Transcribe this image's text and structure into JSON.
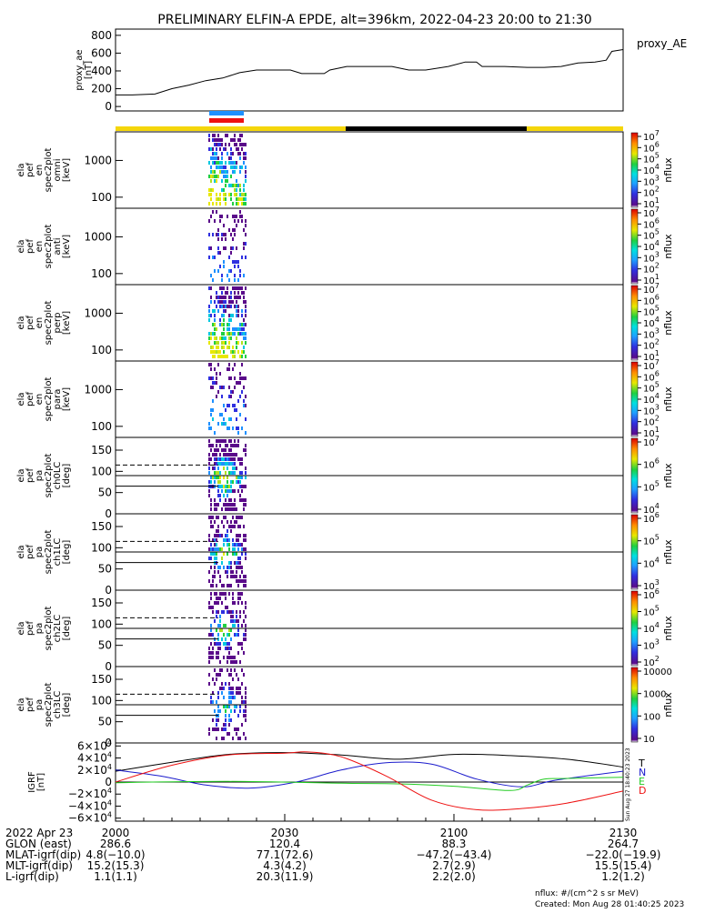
{
  "title": "PRELIMINARY ELFIN-A EPDE, alt=396km, 2022-04-23 20:00 to 21:30",
  "colors": {
    "bar_day": "#f5d60a",
    "bar_night": "#000000",
    "ind_blue": "#1e90ff",
    "ind_red": "#ee1111",
    "N": "#1a1acc",
    "T": "#000000",
    "E": "#22cc22",
    "D": "#ee1111"
  },
  "chart_data": [
    {
      "type": "line",
      "name": "proxy_ae",
      "ylabel": "proxy_ae [nT]",
      "legend": "proxy_AE",
      "yticks": [
        "800",
        "600",
        "400",
        "200",
        "0"
      ],
      "ylim": [
        -50,
        870
      ],
      "xlim_min": [
        0,
        90
      ],
      "x_min": [
        0,
        3,
        7,
        10,
        13,
        16,
        19,
        22,
        25,
        28,
        31,
        33,
        35,
        37,
        38,
        41,
        44,
        46,
        49,
        52,
        54,
        55,
        59,
        62,
        64,
        65,
        69,
        73,
        76,
        79,
        82,
        85,
        87,
        88,
        90
      ],
      "values": [
        130,
        130,
        140,
        200,
        240,
        290,
        320,
        380,
        410,
        410,
        410,
        370,
        370,
        370,
        410,
        450,
        450,
        450,
        450,
        410,
        410,
        410,
        450,
        500,
        500,
        450,
        450,
        440,
        440,
        450,
        490,
        500,
        520,
        620,
        640
      ]
    },
    {
      "type": "heatmap",
      "name": "ela_pef_en_spec2plot_omni",
      "ylabel": "ela pef en spec2plot omni [keV]",
      "yticks": [
        "1000",
        "100"
      ],
      "yscale": "log",
      "colorbar": {
        "label": "nflux",
        "ticks": [
          "10^7",
          "10^6",
          "10^5",
          "10^4",
          "10^3",
          "10^2",
          "10^1"
        ]
      }
    },
    {
      "type": "heatmap",
      "name": "ela_pef_en_spec2plot_anti",
      "ylabel": "ela pef en spec2plot anti [keV]",
      "yticks": [
        "1000",
        "100"
      ],
      "yscale": "log",
      "colorbar": {
        "label": "nflux",
        "ticks": [
          "10^7",
          "10^6",
          "10^5",
          "10^4",
          "10^3",
          "10^2",
          "10^1"
        ]
      }
    },
    {
      "type": "heatmap",
      "name": "ela_pef_en_spec2plot_perp",
      "ylabel": "ela pef en spec2plot perp [keV]",
      "yticks": [
        "1000",
        "100"
      ],
      "yscale": "log",
      "colorbar": {
        "label": "nflux",
        "ticks": [
          "10^7",
          "10^6",
          "10^5",
          "10^4",
          "10^3",
          "10^2",
          "10^1"
        ]
      }
    },
    {
      "type": "heatmap",
      "name": "ela_pef_en_spec2plot_para",
      "ylabel": "ela pef en spec2plot para [keV]",
      "yticks": [
        "1000",
        "100"
      ],
      "yscale": "log",
      "colorbar": {
        "label": "nflux",
        "ticks": [
          "10^7",
          "10^6",
          "10^5",
          "10^4",
          "10^3",
          "10^2",
          "10^1"
        ]
      }
    },
    {
      "type": "heatmap",
      "name": "ela_pef_pa_spec2plot_ch0LC",
      "ylabel": "ela pef pa spec2plot ch0LC [deg]",
      "yticks": [
        "150",
        "100",
        "50",
        "0"
      ],
      "ylim": [
        0,
        180
      ],
      "colorbar": {
        "label": "nflux",
        "ticks": [
          "10^7",
          "10^6",
          "10^5",
          "10^4"
        ]
      }
    },
    {
      "type": "heatmap",
      "name": "ela_pef_pa_spec2plot_ch1LC",
      "ylabel": "ela pef pa spec2plot ch1LC [deg]",
      "yticks": [
        "150",
        "100",
        "50",
        "0"
      ],
      "ylim": [
        0,
        180
      ],
      "colorbar": {
        "label": "nflux",
        "ticks": [
          "10^6",
          "10^5",
          "10^4",
          "10^3"
        ]
      }
    },
    {
      "type": "heatmap",
      "name": "ela_pef_pa_spec2plot_ch2LC",
      "ylabel": "ela pef pa spec2plot ch2LC [deg]",
      "yticks": [
        "150",
        "100",
        "50",
        "0"
      ],
      "ylim": [
        0,
        180
      ],
      "colorbar": {
        "label": "nflux",
        "ticks": [
          "10^6",
          "10^5",
          "10^4",
          "10^3",
          "10^2"
        ]
      }
    },
    {
      "type": "heatmap",
      "name": "ela_pef_pa_spec2plot_ch3LC",
      "ylabel": "ela pef pa spec2plot ch3LC [deg]",
      "yticks": [
        "150",
        "100",
        "50",
        "0"
      ],
      "ylim": [
        0,
        180
      ],
      "colorbar": {
        "label": "nflux",
        "ticks": [
          "10000",
          "1000",
          "100",
          "10"
        ]
      }
    },
    {
      "type": "line",
      "name": "IGRF",
      "ylabel": "IGRF [nT]",
      "yticks": [
        "6×10^4",
        "4×10^4",
        "2×10^4",
        "0",
        "−2×10^4",
        "−4×10^4",
        "−6×10^4"
      ],
      "ylim": [
        -65000,
        65000
      ],
      "side_text": "Sun Aug 27 18:40:23 2023",
      "series": [
        {
          "name": "T",
          "color": "#000000",
          "x_min": [
            0,
            10,
            20,
            30,
            40,
            50,
            60,
            70,
            80,
            90
          ],
          "values": [
            18000,
            33000,
            46000,
            49000,
            45000,
            38000,
            46000,
            44000,
            38000,
            25000
          ]
        },
        {
          "name": "N",
          "color": "#1a1acc",
          "x_min": [
            0,
            8,
            16,
            24,
            32,
            40,
            48,
            56,
            64,
            72,
            78,
            90
          ],
          "values": [
            20000,
            10000,
            -5000,
            -10000,
            0,
            20000,
            32000,
            30000,
            5000,
            -8000,
            3000,
            18000
          ]
        },
        {
          "name": "E",
          "color": "#22cc22",
          "x_min": [
            0,
            20,
            40,
            50,
            60,
            70,
            73,
            76,
            80,
            90
          ],
          "values": [
            -1000,
            1000,
            -2000,
            -3000,
            -7000,
            -14000,
            -5000,
            5000,
            6000,
            8000
          ]
        },
        {
          "name": "D",
          "color": "#ee1111",
          "x_min": [
            0,
            10,
            20,
            30,
            34,
            40,
            48,
            56,
            64,
            72,
            80,
            90
          ],
          "values": [
            0,
            28000,
            45000,
            48000,
            50000,
            42000,
            10000,
            -30000,
            -46000,
            -44000,
            -35000,
            -15000
          ]
        }
      ]
    }
  ],
  "x_axis": {
    "ticks": [
      "2000",
      "2030",
      "2100",
      "2130"
    ],
    "rows": [
      {
        "label": "2022 Apr 23",
        "values": [
          "2000",
          "2030",
          "2100",
          "2130"
        ]
      },
      {
        "label": "GLON (east)",
        "values": [
          "286.6",
          "120.4",
          "88.3",
          "264.7"
        ]
      },
      {
        "label": "MLAT-igrf(dip)",
        "values": [
          "4.8(−10.0)",
          "77.1(72.6)",
          "−47.2(−43.4)",
          "−22.0(−19.9)"
        ]
      },
      {
        "label": "MLT-igrf(dip)",
        "values": [
          "15.2(15.3)",
          "4.3(4.2)",
          "2.7(2.9)",
          "15.5(15.4)"
        ]
      },
      {
        "label": "L-igrf(dip)",
        "values": [
          "1.1(1.1)",
          "20.3(11.9)",
          "2.2(2.0)",
          "1.2(1.2)"
        ]
      }
    ]
  },
  "footer": {
    "units": "nflux: #/(cm^2 s sr MeV)",
    "created": "Created: Mon Aug 28 01:40:25 2023"
  }
}
